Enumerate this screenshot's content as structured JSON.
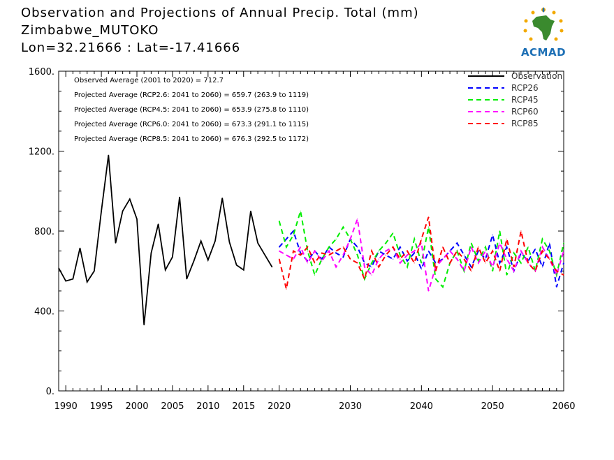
{
  "header": {
    "title": "Observation and Projections of Annual Precip. Total (mm)",
    "station": "Zimbabwe_MUTOKO",
    "coords": "Lon=32.21666 : Lat=-17.41666"
  },
  "logo": {
    "text": "ACMAD"
  },
  "annotations": [
    "Observed Average (2001 to 2020) = 712.7",
    "Projected Average (RCP2.6: 2041 to 2060) = 659.7 (263.9 to 1119)",
    "Projected Average (RCP4.5: 2041 to 2060) = 653.9 (275.8 to 1110)",
    "Projected Average (RCP6.0: 2041 to 2060) = 673.3 (291.1 to 1115)",
    "Projected Average (RCP8.5: 2041 to 2060) = 676.3 (292.5 to 1172)"
  ],
  "chart_data": {
    "type": "line",
    "title": "Observation and Projections of Annual Precip. Total (mm)",
    "xlim": [
      1989,
      2060
    ],
    "ylim": [
      0,
      1600
    ],
    "yticks": [
      0,
      400,
      800,
      1200,
      1600
    ],
    "ytick_labels": [
      "0.",
      "400.",
      "800.",
      "1200.",
      "1600."
    ],
    "xticks": [
      1990,
      1995,
      2000,
      2005,
      2010,
      2015,
      2020,
      2030,
      2040,
      2050,
      2060
    ],
    "legend_position": "top-right",
    "series": [
      {
        "name": "Observation",
        "color": "#000000",
        "dash": "solid",
        "x": [
          1989,
          1990,
          1991,
          1992,
          1993,
          1994,
          1995,
          1996,
          1997,
          1998,
          1999,
          2000,
          2001,
          2002,
          2003,
          2004,
          2005,
          2006,
          2007,
          2008,
          2009,
          2010,
          2011,
          2012,
          2013,
          2014,
          2015,
          2016,
          2017,
          2018,
          2019
        ],
        "values": [
          615,
          550,
          560,
          715,
          545,
          600,
          900,
          1180,
          740,
          900,
          960,
          860,
          330,
          690,
          835,
          605,
          670,
          970,
          560,
          650,
          750,
          655,
          750,
          965,
          745,
          630,
          605,
          900,
          740,
          680,
          620
        ]
      },
      {
        "name": "RCP26",
        "color": "#0000ff",
        "dash": "dashed",
        "x": [
          2020,
          2021,
          2022,
          2023,
          2024,
          2025,
          2026,
          2027,
          2028,
          2029,
          2030,
          2031,
          2032,
          2033,
          2034,
          2035,
          2036,
          2037,
          2038,
          2039,
          2040,
          2041,
          2042,
          2043,
          2044,
          2045,
          2046,
          2047,
          2048,
          2049,
          2050,
          2051,
          2052,
          2053,
          2054,
          2055,
          2056,
          2057,
          2058,
          2059,
          2060
        ],
        "values": [
          720,
          760,
          800,
          690,
          650,
          700,
          660,
          720,
          690,
          670,
          760,
          720,
          640,
          620,
          700,
          680,
          660,
          720,
          650,
          690,
          610,
          700,
          640,
          660,
          700,
          740,
          680,
          620,
          700,
          660,
          780,
          640,
          720,
          600,
          690,
          650,
          710,
          620,
          740,
          520,
          640
        ]
      },
      {
        "name": "RCP45",
        "color": "#00ee00",
        "dash": "dashed",
        "x": [
          2020,
          2021,
          2022,
          2023,
          2024,
          2025,
          2026,
          2027,
          2028,
          2029,
          2030,
          2031,
          2032,
          2033,
          2034,
          2035,
          2036,
          2037,
          2038,
          2039,
          2040,
          2041,
          2042,
          2043,
          2044,
          2045,
          2046,
          2047,
          2048,
          2049,
          2050,
          2051,
          2052,
          2053,
          2054,
          2055,
          2056,
          2057,
          2058,
          2059,
          2060
        ],
        "values": [
          850,
          720,
          780,
          900,
          700,
          580,
          660,
          720,
          760,
          820,
          760,
          680,
          560,
          640,
          700,
          740,
          790,
          680,
          620,
          760,
          640,
          820,
          560,
          520,
          640,
          700,
          600,
          740,
          650,
          720,
          600,
          800,
          580,
          690,
          640,
          720,
          600,
          760,
          700,
          580,
          740
        ]
      },
      {
        "name": "RCP60",
        "color": "#ff00ff",
        "dash": "dashed",
        "x": [
          2020,
          2021,
          2022,
          2023,
          2024,
          2025,
          2026,
          2027,
          2028,
          2029,
          2030,
          2031,
          2032,
          2033,
          2034,
          2035,
          2036,
          2037,
          2038,
          2039,
          2040,
          2041,
          2042,
          2043,
          2044,
          2045,
          2046,
          2047,
          2048,
          2049,
          2050,
          2051,
          2052,
          2053,
          2054,
          2055,
          2056,
          2057,
          2058,
          2059,
          2060
        ],
        "values": [
          700,
          680,
          660,
          720,
          640,
          700,
          650,
          700,
          620,
          680,
          760,
          860,
          620,
          580,
          660,
          700,
          720,
          640,
          680,
          700,
          740,
          500,
          620,
          660,
          700,
          660,
          600,
          720,
          640,
          700,
          620,
          740,
          660,
          600,
          700,
          640,
          600,
          720,
          660,
          580,
          700
        ]
      },
      {
        "name": "RCP85",
        "color": "#ff0000",
        "dash": "dashed",
        "x": [
          2020,
          2021,
          2022,
          2023,
          2024,
          2025,
          2026,
          2027,
          2028,
          2029,
          2030,
          2031,
          2032,
          2033,
          2034,
          2035,
          2036,
          2037,
          2038,
          2039,
          2040,
          2041,
          2042,
          2043,
          2044,
          2045,
          2046,
          2047,
          2048,
          2049,
          2050,
          2051,
          2052,
          2053,
          2054,
          2055,
          2056,
          2057,
          2058,
          2059,
          2060
        ],
        "values": [
          660,
          510,
          700,
          680,
          720,
          640,
          690,
          680,
          700,
          720,
          660,
          640,
          560,
          700,
          620,
          680,
          720,
          660,
          700,
          640,
          760,
          870,
          600,
          720,
          640,
          700,
          660,
          600,
          720,
          640,
          700,
          600,
          760,
          620,
          800,
          640,
          600,
          700,
          660,
          600,
          580
        ]
      }
    ]
  }
}
